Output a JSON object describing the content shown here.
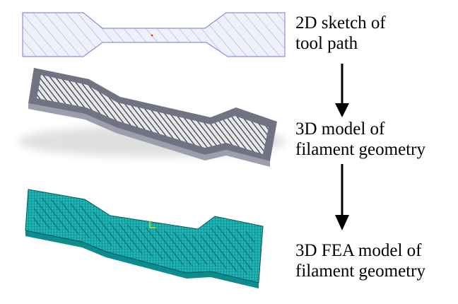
{
  "steps": [
    {
      "id": "sketch",
      "caption_lines": [
        "2D sketch of",
        "tool path"
      ],
      "outline_color": "#8a8fe0",
      "hatch_color": "#9aa0d8",
      "fill_color": "#eef0fa"
    },
    {
      "id": "solid",
      "caption_lines": [
        "3D model of",
        "filament geometry"
      ],
      "face_color": "#6f7382",
      "side_color": "#9a9ead",
      "hatch_color": "#3c3f48",
      "gap_color": "#e9e9ec"
    },
    {
      "id": "fea",
      "caption_lines": [
        "3D FEA model of",
        "filament geometry"
      ],
      "mesh_color": "#0b8c8f",
      "mesh_dark": "#06575a",
      "mesh_light": "#1fb5b4"
    }
  ],
  "arrow_color": "#000000"
}
